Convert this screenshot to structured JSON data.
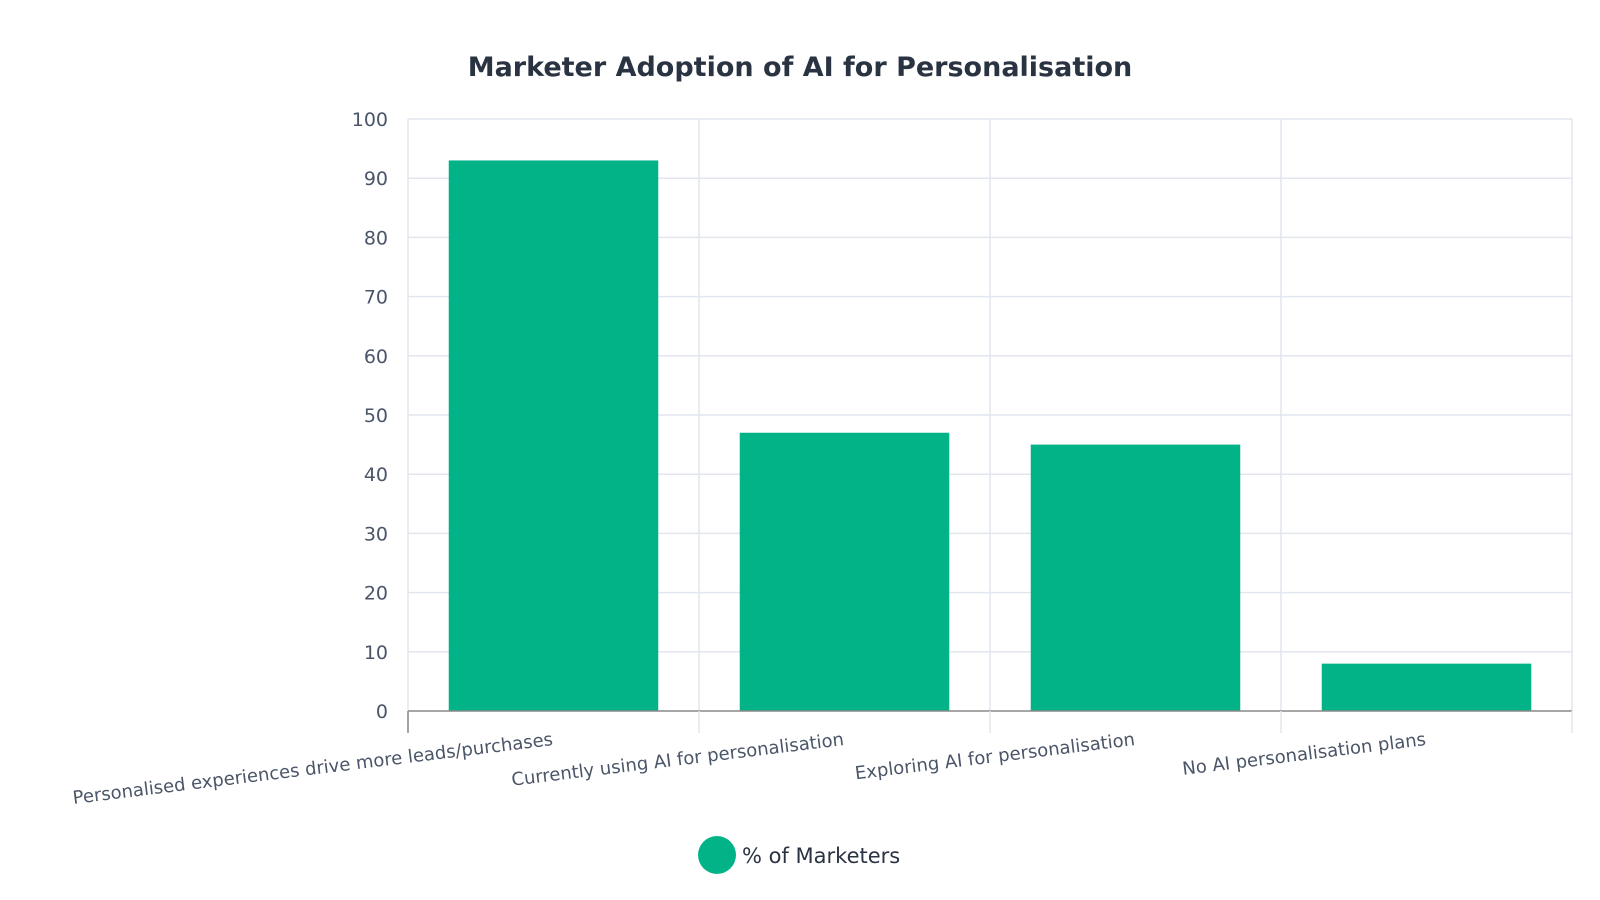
{
  "chart_data": {
    "type": "bar",
    "title": "Marketer Adoption of AI for Personalisation",
    "categories": [
      "Personalised experiences drive more leads/purchases",
      "Currently using AI for personalisation",
      "Exploring AI for personalisation",
      "No AI personalisation plans"
    ],
    "series": [
      {
        "name": "% of Marketers",
        "values": [
          93,
          47,
          45,
          8
        ],
        "color": "#02b388"
      }
    ],
    "xlabel": "",
    "ylabel": "",
    "ylim": [
      0,
      100
    ],
    "yticks": [
      0,
      10,
      20,
      30,
      40,
      50,
      60,
      70,
      80,
      90,
      100
    ],
    "grid": true,
    "legend_position": "bottom-center",
    "colors": {
      "grid": "#e2e6ee",
      "axis": "#888888",
      "text": "#4a5568",
      "title": "#2a3342"
    }
  }
}
